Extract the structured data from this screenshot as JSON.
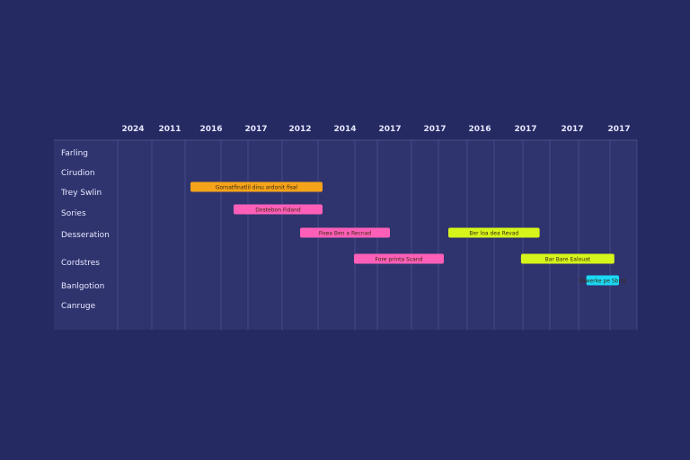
{
  "chart_data": {
    "type": "gantt",
    "title": "",
    "columns": [
      "2024",
      "2011",
      "2016",
      "2017",
      "2012",
      "2014",
      "2017",
      "2017",
      "2016",
      "2017",
      "2017",
      "2017"
    ],
    "rows": [
      "Farling",
      "Cirudion",
      "Trey Swlin",
      "Sories",
      "Desseration",
      "Cordstres",
      "Banlgotion",
      "Canruge"
    ],
    "bars": [
      {
        "label": "Gornatfinatlil dinu ardonit fisal",
        "row": 2,
        "start": 2.5,
        "end": 5.5,
        "color": "#f5a31a"
      },
      {
        "label": "Dostebon Fidand",
        "row": 3,
        "start": 3.5,
        "end": 5.5,
        "color": "#ff5fb8"
      },
      {
        "label": "Fisea Ben a Recnad",
        "row": 4,
        "start": 5.0,
        "end": 7.0,
        "color": "#ff5fb8"
      },
      {
        "label": "Ber loa dea Revad",
        "row": 4,
        "start": 8.3,
        "end": 10.3,
        "color": "#d6f51a"
      },
      {
        "label": "Fore printa Scand",
        "row": 5,
        "start": 6.2,
        "end": 8.2,
        "color": "#ff5fb8"
      },
      {
        "label": "Bar Bare Ealouat",
        "row": 5,
        "start": 9.9,
        "end": 11.9,
        "color": "#d6f51a"
      },
      {
        "label": "Fowerke pe Sbutt",
        "row": 6,
        "start": 11.3,
        "end": 13.4,
        "color": "#1ad9f5"
      }
    ],
    "colors": {
      "background": "#262a62",
      "panel": "#30346e",
      "grid": "#4a4e8c",
      "text": "#e6e8ff"
    }
  }
}
